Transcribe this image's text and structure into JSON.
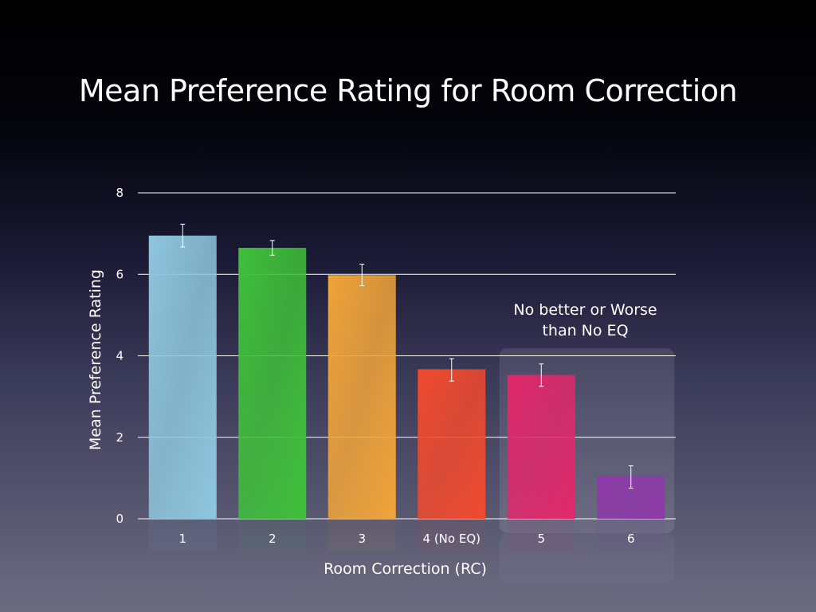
{
  "title": "Mean Preference Rating for Room Correction",
  "chart_data": {
    "type": "bar",
    "title": "Mean Preference Rating for Room Correction",
    "xlabel": "Room Correction (RC)",
    "ylabel": "Mean Preference Rating",
    "categories": [
      "1",
      "2",
      "3",
      "4 (No EQ)",
      "5",
      "6"
    ],
    "values": [
      6.95,
      6.65,
      5.98,
      3.67,
      3.53,
      1.05
    ],
    "error": [
      [
        6.67,
        7.23
      ],
      [
        6.47,
        6.83
      ],
      [
        5.72,
        6.25
      ],
      [
        3.38,
        3.93
      ],
      [
        3.25,
        3.8
      ],
      [
        0.75,
        1.3
      ]
    ],
    "colors": [
      "#8ec6dd",
      "#3fbf3a",
      "#f0a43a",
      "#f04a2e",
      "#e0286a",
      "#8e3aa8"
    ],
    "ylim": [
      0,
      8
    ],
    "yticks": [
      0,
      2,
      4,
      6,
      8
    ],
    "grid": true,
    "annotation": {
      "lines": [
        "No better or Worse",
        "than No EQ"
      ],
      "categories": [
        "5",
        "6"
      ]
    }
  }
}
